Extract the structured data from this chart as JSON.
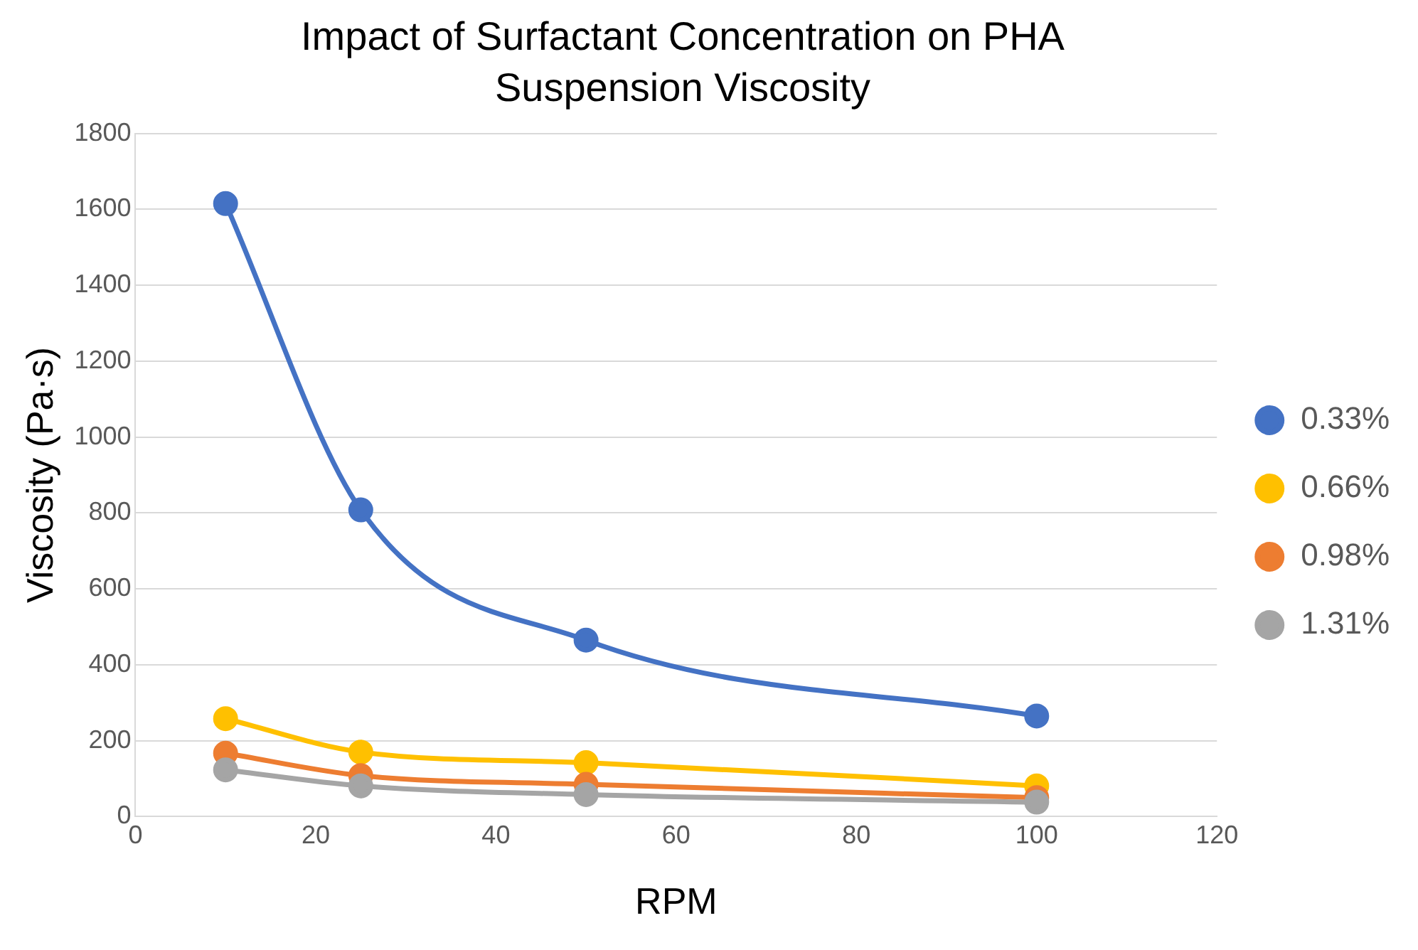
{
  "chart_data": {
    "type": "line",
    "title": "Impact of Surfactant Concentration on PHA Suspension Viscosity",
    "xlabel": "RPM",
    "ylabel": "Viscosity (Pa·s)",
    "x": [
      10,
      25,
      50,
      100
    ],
    "series": [
      {
        "name": "0.33%",
        "color": "#4472c4",
        "values": [
          1615,
          808,
          465,
          265
        ]
      },
      {
        "name": "0.66%",
        "color": "#ffc000",
        "values": [
          258,
          170,
          142,
          81
        ]
      },
      {
        "name": "0.98%",
        "color": "#ed7d31",
        "values": [
          167,
          108,
          85,
          50
        ]
      },
      {
        "name": "1.31%",
        "color": "#a5a5a5",
        "values": [
          123,
          81,
          58,
          38
        ]
      }
    ],
    "xlim": [
      0,
      120
    ],
    "xticks": [
      0,
      20,
      40,
      60,
      80,
      100,
      120
    ],
    "ylim": [
      0,
      1800
    ],
    "yticks": [
      0,
      200,
      400,
      600,
      800,
      1000,
      1200,
      1400,
      1600,
      1800
    ],
    "grid": "y",
    "legend": "right",
    "marker": "circle",
    "line_style": "solid"
  }
}
